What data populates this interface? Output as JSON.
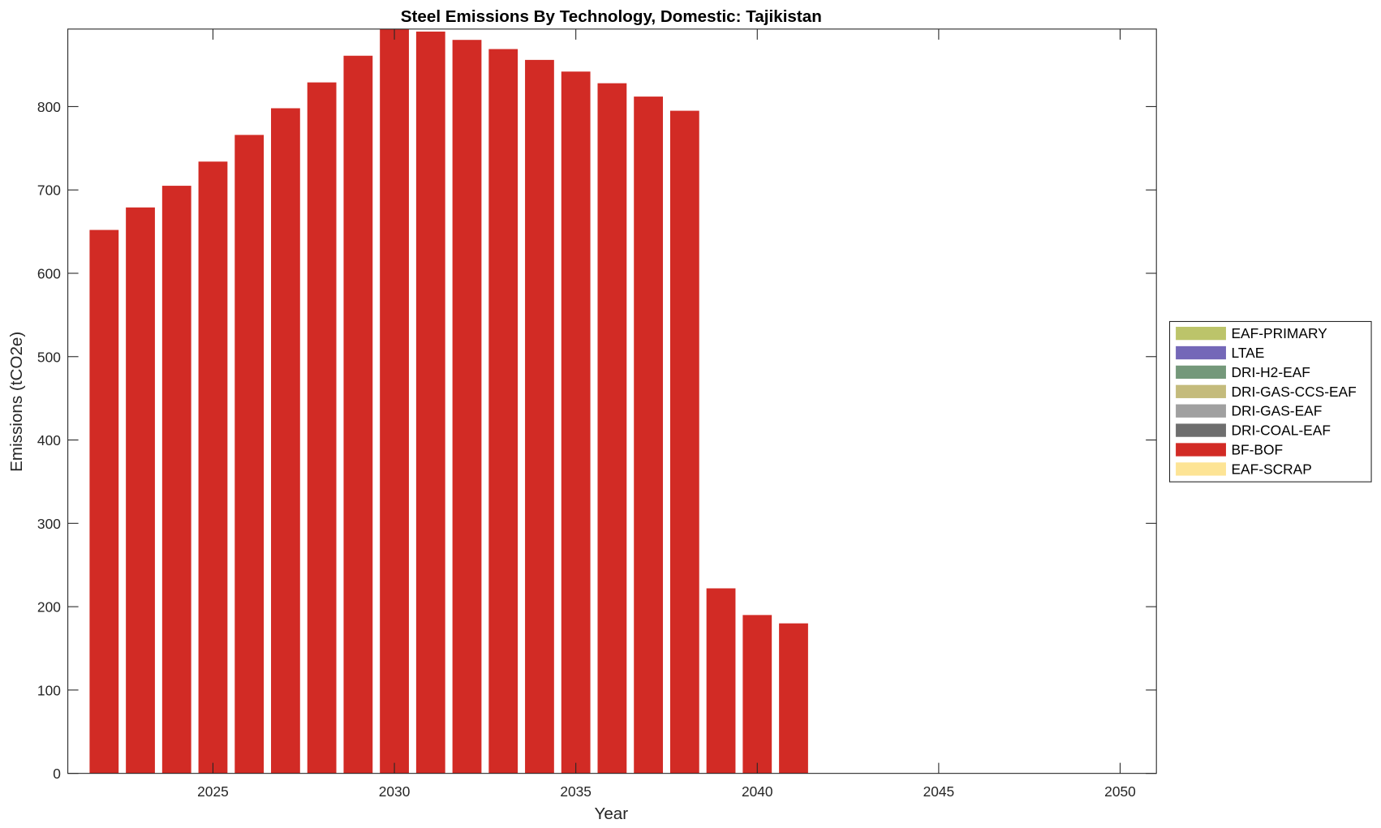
{
  "chart_data": {
    "type": "bar",
    "stacked": true,
    "title": "Steel Emissions By Technology, Domestic: Tajikistan",
    "xlabel": "Year",
    "ylabel": "Emissions (tCO2e)",
    "xlim": [
      2021,
      2051
    ],
    "ylim": [
      0,
      893
    ],
    "xticks": [
      2025,
      2030,
      2035,
      2040,
      2045,
      2050
    ],
    "yticks": [
      0,
      100,
      200,
      300,
      400,
      500,
      600,
      700,
      800
    ],
    "grid": false,
    "legend_placement": "right",
    "categories": [
      2022,
      2023,
      2024,
      2025,
      2026,
      2027,
      2028,
      2029,
      2030,
      2031,
      2032,
      2033,
      2034,
      2035,
      2036,
      2037,
      2038,
      2039,
      2040,
      2041
    ],
    "series": [
      {
        "name": "EAF-PRIMARY",
        "color": "#bcc46a",
        "values": [
          0,
          0,
          0,
          0,
          0,
          0,
          0,
          0,
          0,
          0,
          0,
          0,
          0,
          0,
          0,
          0,
          0,
          0,
          0,
          0
        ]
      },
      {
        "name": "LTAE",
        "color": "#7468b8",
        "values": [
          0,
          0,
          0,
          0,
          0,
          0,
          0,
          0,
          0,
          0,
          0,
          0,
          0,
          0,
          0,
          0,
          0,
          0,
          0,
          0
        ]
      },
      {
        "name": "DRI-H2-EAF",
        "color": "#74987a",
        "values": [
          0,
          0,
          0,
          0,
          0,
          0,
          0,
          0,
          0,
          0,
          0,
          0,
          0,
          0,
          0,
          0,
          0,
          0,
          0,
          0
        ]
      },
      {
        "name": "DRI-GAS-CCS-EAF",
        "color": "#c4bb7c",
        "values": [
          0,
          0,
          0,
          0,
          0,
          0,
          0,
          0,
          0,
          0,
          0,
          0,
          0,
          0,
          0,
          0,
          0,
          0,
          0,
          0
        ]
      },
      {
        "name": "DRI-GAS-EAF",
        "color": "#a0a0a0",
        "values": [
          0,
          0,
          0,
          0,
          0,
          0,
          0,
          0,
          0,
          0,
          0,
          0,
          0,
          0,
          0,
          0,
          0,
          0,
          0,
          0
        ]
      },
      {
        "name": "DRI-COAL-EAF",
        "color": "#6e6e6e",
        "values": [
          0,
          0,
          0,
          0,
          0,
          0,
          0,
          0,
          0,
          0,
          0,
          0,
          0,
          0,
          0,
          0,
          0,
          0,
          0,
          0
        ]
      },
      {
        "name": "BF-BOF",
        "color": "#d22b25",
        "values": [
          652,
          679,
          705,
          734,
          766,
          798,
          829,
          861,
          893,
          890,
          880,
          869,
          856,
          842,
          828,
          812,
          795,
          222,
          190,
          180
        ]
      },
      {
        "name": "EAF-SCRAP",
        "color": "#fde495",
        "values": [
          0,
          0,
          0,
          0,
          0,
          0,
          0,
          0,
          0,
          0,
          0,
          0,
          0,
          0,
          0,
          0,
          0,
          0,
          0,
          0
        ]
      }
    ]
  }
}
